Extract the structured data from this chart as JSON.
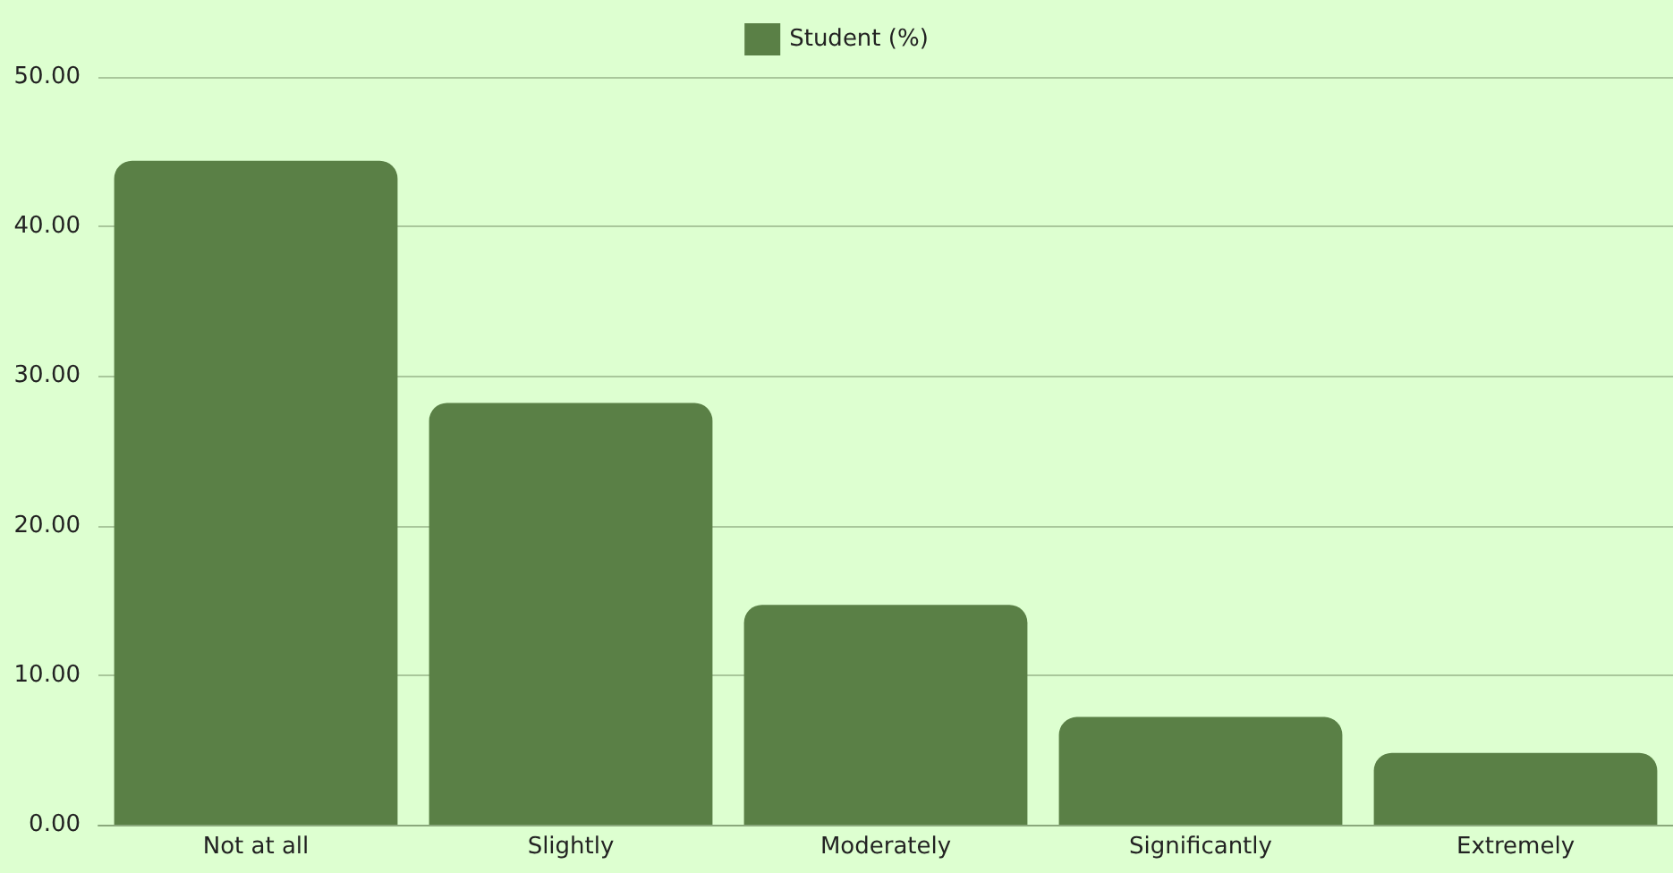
{
  "chart_data": {
    "type": "bar",
    "categories": [
      "Not at all",
      "Slightly",
      "Moderately",
      "Significantly",
      "Extremely"
    ],
    "series": [
      {
        "name": "Student (%)",
        "color": "#5a8046",
        "values": [
          44.4,
          28.2,
          14.7,
          7.2,
          4.8
        ]
      }
    ],
    "ylim": [
      0,
      50
    ],
    "yticks": [
      {
        "value": 0,
        "label": "0.00"
      },
      {
        "value": 10,
        "label": "10.00"
      },
      {
        "value": 20,
        "label": "20.00"
      },
      {
        "value": 30,
        "label": "30.00"
      },
      {
        "value": 40,
        "label": "40.00"
      },
      {
        "value": 50,
        "label": "50.00"
      }
    ],
    "grid": "y",
    "legend": "top"
  }
}
